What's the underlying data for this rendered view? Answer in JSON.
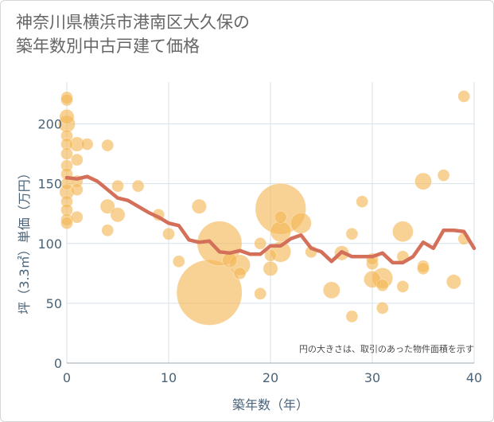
{
  "title": "神奈川県横浜市港南区大久保の\n築年数別中古戸建て価格",
  "chart_data": {
    "type": "scatter",
    "xlabel": "築年数（年）",
    "ylabel": "坪（3.3㎡）単価（万円）",
    "xlim": [
      0,
      40
    ],
    "ylim": [
      0,
      235
    ],
    "xticks": [
      0,
      10,
      20,
      30,
      40
    ],
    "yticks": [
      0,
      50,
      100,
      150,
      200
    ],
    "grid": true,
    "note": "円の大きさは、取引のあった物件面積を示す",
    "colors": {
      "bubble": "#f4b654",
      "line": "#d4705a",
      "grid": "#d7e1ea",
      "text": "#4a6378"
    },
    "bubbles": [
      {
        "x": 0,
        "y": 222,
        "size": 1
      },
      {
        "x": 0,
        "y": 220,
        "size": 1
      },
      {
        "x": 0,
        "y": 206,
        "size": 1.5
      },
      {
        "x": 0,
        "y": 200,
        "size": 2
      },
      {
        "x": 0,
        "y": 190,
        "size": 1
      },
      {
        "x": 0,
        "y": 183,
        "size": 1
      },
      {
        "x": 0,
        "y": 175,
        "size": 1
      },
      {
        "x": 0,
        "y": 165,
        "size": 1
      },
      {
        "x": 0,
        "y": 158,
        "size": 1
      },
      {
        "x": 0,
        "y": 150,
        "size": 1
      },
      {
        "x": 0,
        "y": 143,
        "size": 1.5
      },
      {
        "x": 0,
        "y": 135,
        "size": 1
      },
      {
        "x": 0,
        "y": 128,
        "size": 1
      },
      {
        "x": 0,
        "y": 120,
        "size": 1
      },
      {
        "x": 0,
        "y": 117,
        "size": 1
      },
      {
        "x": 1,
        "y": 183,
        "size": 1.5
      },
      {
        "x": 1,
        "y": 170,
        "size": 1
      },
      {
        "x": 1,
        "y": 152,
        "size": 1
      },
      {
        "x": 1,
        "y": 145,
        "size": 1
      },
      {
        "x": 1,
        "y": 122,
        "size": 1
      },
      {
        "x": 2,
        "y": 183,
        "size": 1
      },
      {
        "x": 4,
        "y": 131,
        "size": 1.5
      },
      {
        "x": 4,
        "y": 182,
        "size": 1
      },
      {
        "x": 4,
        "y": 111,
        "size": 1
      },
      {
        "x": 5,
        "y": 148,
        "size": 1
      },
      {
        "x": 5,
        "y": 124,
        "size": 1.5
      },
      {
        "x": 7,
        "y": 148,
        "size": 1
      },
      {
        "x": 9,
        "y": 124,
        "size": 1
      },
      {
        "x": 10,
        "y": 108,
        "size": 1
      },
      {
        "x": 11,
        "y": 85,
        "size": 1
      },
      {
        "x": 13,
        "y": 131,
        "size": 1.5
      },
      {
        "x": 14,
        "y": 59,
        "size": 30
      },
      {
        "x": 15,
        "y": 100,
        "size": 14
      },
      {
        "x": 16,
        "y": 86,
        "size": 1.5
      },
      {
        "x": 17,
        "y": 82,
        "size": 3
      },
      {
        "x": 17,
        "y": 75,
        "size": 1
      },
      {
        "x": 19,
        "y": 58,
        "size": 1
      },
      {
        "x": 19,
        "y": 100,
        "size": 1
      },
      {
        "x": 20,
        "y": 79,
        "size": 1.5
      },
      {
        "x": 20,
        "y": 90,
        "size": 1
      },
      {
        "x": 21,
        "y": 129,
        "size": 18
      },
      {
        "x": 21,
        "y": 122,
        "size": 1
      },
      {
        "x": 21,
        "y": 110,
        "size": 3
      },
      {
        "x": 21,
        "y": 93,
        "size": 3
      },
      {
        "x": 23,
        "y": 117,
        "size": 3
      },
      {
        "x": 24,
        "y": 93,
        "size": 1
      },
      {
        "x": 26,
        "y": 61,
        "size": 2
      },
      {
        "x": 27,
        "y": 92,
        "size": 1.5
      },
      {
        "x": 28,
        "y": 39,
        "size": 1
      },
      {
        "x": 28,
        "y": 108,
        "size": 1
      },
      {
        "x": 29,
        "y": 135,
        "size": 1
      },
      {
        "x": 30,
        "y": 70,
        "size": 2
      },
      {
        "x": 30,
        "y": 83,
        "size": 1
      },
      {
        "x": 30,
        "y": 87,
        "size": 1
      },
      {
        "x": 31,
        "y": 71,
        "size": 3
      },
      {
        "x": 31,
        "y": 65,
        "size": 1
      },
      {
        "x": 31,
        "y": 46,
        "size": 1
      },
      {
        "x": 33,
        "y": 110,
        "size": 3
      },
      {
        "x": 33,
        "y": 64,
        "size": 1
      },
      {
        "x": 33,
        "y": 89,
        "size": 1
      },
      {
        "x": 35,
        "y": 152,
        "size": 2
      },
      {
        "x": 35,
        "y": 81,
        "size": 1
      },
      {
        "x": 35,
        "y": 79,
        "size": 1
      },
      {
        "x": 37,
        "y": 157,
        "size": 1
      },
      {
        "x": 38,
        "y": 68,
        "size": 1.5
      },
      {
        "x": 39,
        "y": 223,
        "size": 1
      },
      {
        "x": 39,
        "y": 104,
        "size": 1
      }
    ],
    "trend": {
      "x": [
        0,
        1,
        2,
        3,
        4,
        5,
        6,
        7,
        8,
        9,
        10,
        11,
        12,
        13,
        14,
        15,
        16,
        17,
        18,
        19,
        20,
        21,
        22,
        23,
        24,
        25,
        26,
        27,
        28,
        29,
        30,
        31,
        32,
        33,
        34,
        35,
        36,
        37,
        38,
        39,
        40
      ],
      "y": [
        155,
        154,
        156,
        152,
        145,
        138,
        136,
        131,
        126,
        122,
        117,
        115,
        103,
        101,
        102,
        93,
        92,
        94,
        91,
        91,
        98,
        98,
        104,
        107,
        96,
        93,
        85,
        93,
        89,
        89,
        89,
        92,
        84,
        84,
        89,
        101,
        96,
        111,
        111,
        110,
        96
      ]
    }
  }
}
